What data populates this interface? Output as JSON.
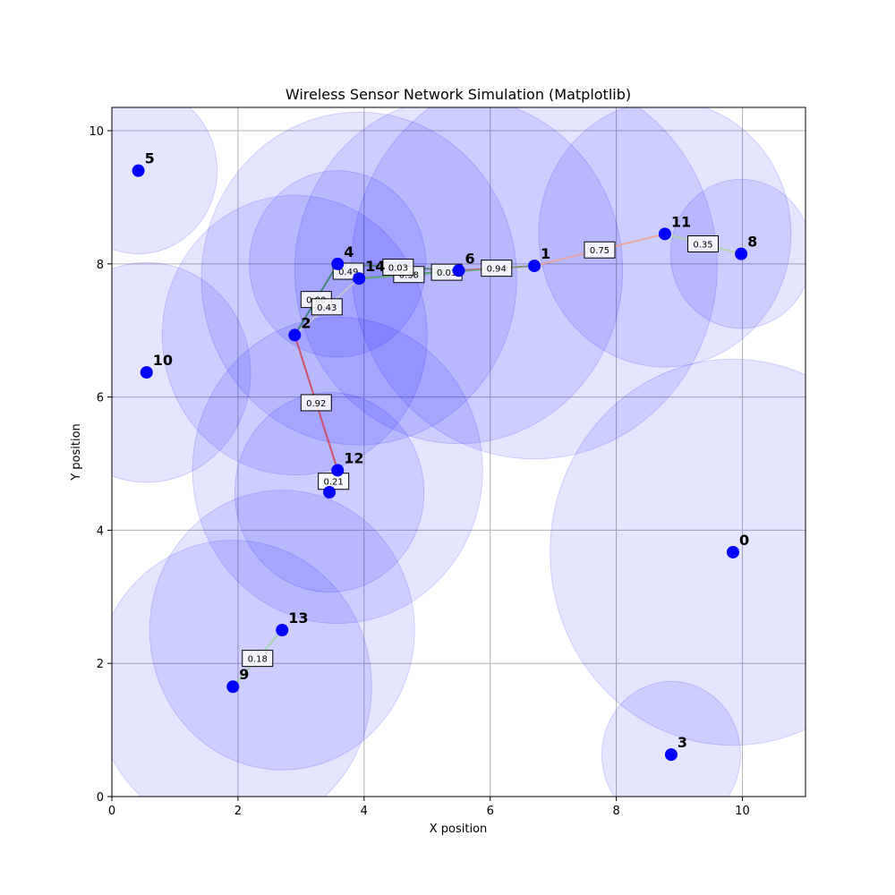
{
  "chart_data": {
    "type": "scatter",
    "title": "Wireless Sensor Network Simulation (Matplotlib)",
    "xlabel": "X position",
    "ylabel": "Y position",
    "xlim": [
      0,
      11
    ],
    "ylim": [
      0,
      10.35
    ],
    "xticks": [
      0,
      2,
      4,
      6,
      8,
      10
    ],
    "yticks": [
      0,
      2,
      4,
      6,
      8,
      10
    ],
    "grid": true,
    "colors": {
      "node": "#0000ff",
      "range_fill": "#0000ff",
      "range_stroke": "#0000ff",
      "grid": "#b0b0b0"
    },
    "nodes": [
      {
        "id": "0",
        "x": 9.85,
        "y": 3.67,
        "range": 2.9
      },
      {
        "id": "1",
        "x": 6.7,
        "y": 7.97,
        "range": 2.9
      },
      {
        "id": "2",
        "x": 2.9,
        "y": 6.93,
        "range": 2.1
      },
      {
        "id": "3",
        "x": 8.87,
        "y": 0.63,
        "range": 1.1
      },
      {
        "id": "4",
        "x": 3.58,
        "y": 8.0,
        "range": 1.4
      },
      {
        "id": "5",
        "x": 0.42,
        "y": 9.4,
        "range": 1.25
      },
      {
        "id": "6",
        "x": 5.5,
        "y": 7.9,
        "range": 2.6
      },
      {
        "id": "8",
        "x": 9.98,
        "y": 8.15,
        "range": 1.12
      },
      {
        "id": "9",
        "x": 1.92,
        "y": 1.65,
        "range": 2.2
      },
      {
        "id": "10",
        "x": 0.55,
        "y": 6.37,
        "range": 1.65
      },
      {
        "id": "11",
        "x": 8.77,
        "y": 8.45,
        "range": 2.0
      },
      {
        "id": "12",
        "x": 3.58,
        "y": 4.9,
        "range": 2.3
      },
      {
        "id": "12b",
        "x": 3.45,
        "y": 4.57,
        "range": 1.5
      },
      {
        "id": "13",
        "x": 2.7,
        "y": 2.5,
        "range": 2.1
      },
      {
        "id": "14",
        "x": 3.92,
        "y": 7.78,
        "range": 2.5
      }
    ],
    "edges": [
      {
        "from": "11",
        "to": "8",
        "weight": "0.35",
        "color": "#b0d8a0"
      },
      {
        "from": "1",
        "to": "11",
        "weight": "0.75",
        "color": "#f0a090"
      },
      {
        "from": "6",
        "to": "1",
        "weight": "0.94",
        "color": "#d04050"
      },
      {
        "from": "14",
        "to": "6",
        "weight": "0.38",
        "color": "#2e8b57"
      },
      {
        "from": "4",
        "to": "6",
        "weight": "0.03",
        "color": "#4a7a66"
      },
      {
        "from": "14",
        "to": "1",
        "weight": "0.03",
        "color": "#6aaa80"
      },
      {
        "from": "4",
        "to": "14",
        "weight": "0.49",
        "color": "#3a7a60"
      },
      {
        "from": "4",
        "to": "2",
        "weight": "0.00",
        "color": "#2e7d6a"
      },
      {
        "from": "2",
        "to": "14",
        "weight": "0.43",
        "color": "#c8c8c8"
      },
      {
        "from": "2",
        "to": "12",
        "weight": "0.92",
        "color": "#d04050"
      },
      {
        "from": "12",
        "to": "12b",
        "weight": "0.21",
        "color": "#a0d0a0"
      },
      {
        "from": "9",
        "to": "13",
        "weight": "0.18",
        "color": "#a0d0a0"
      }
    ],
    "node_labels": [
      "0",
      "1",
      "2",
      "3",
      "4",
      "5",
      "6",
      "8",
      "9",
      "10",
      "11",
      "12",
      "13",
      "14"
    ]
  }
}
